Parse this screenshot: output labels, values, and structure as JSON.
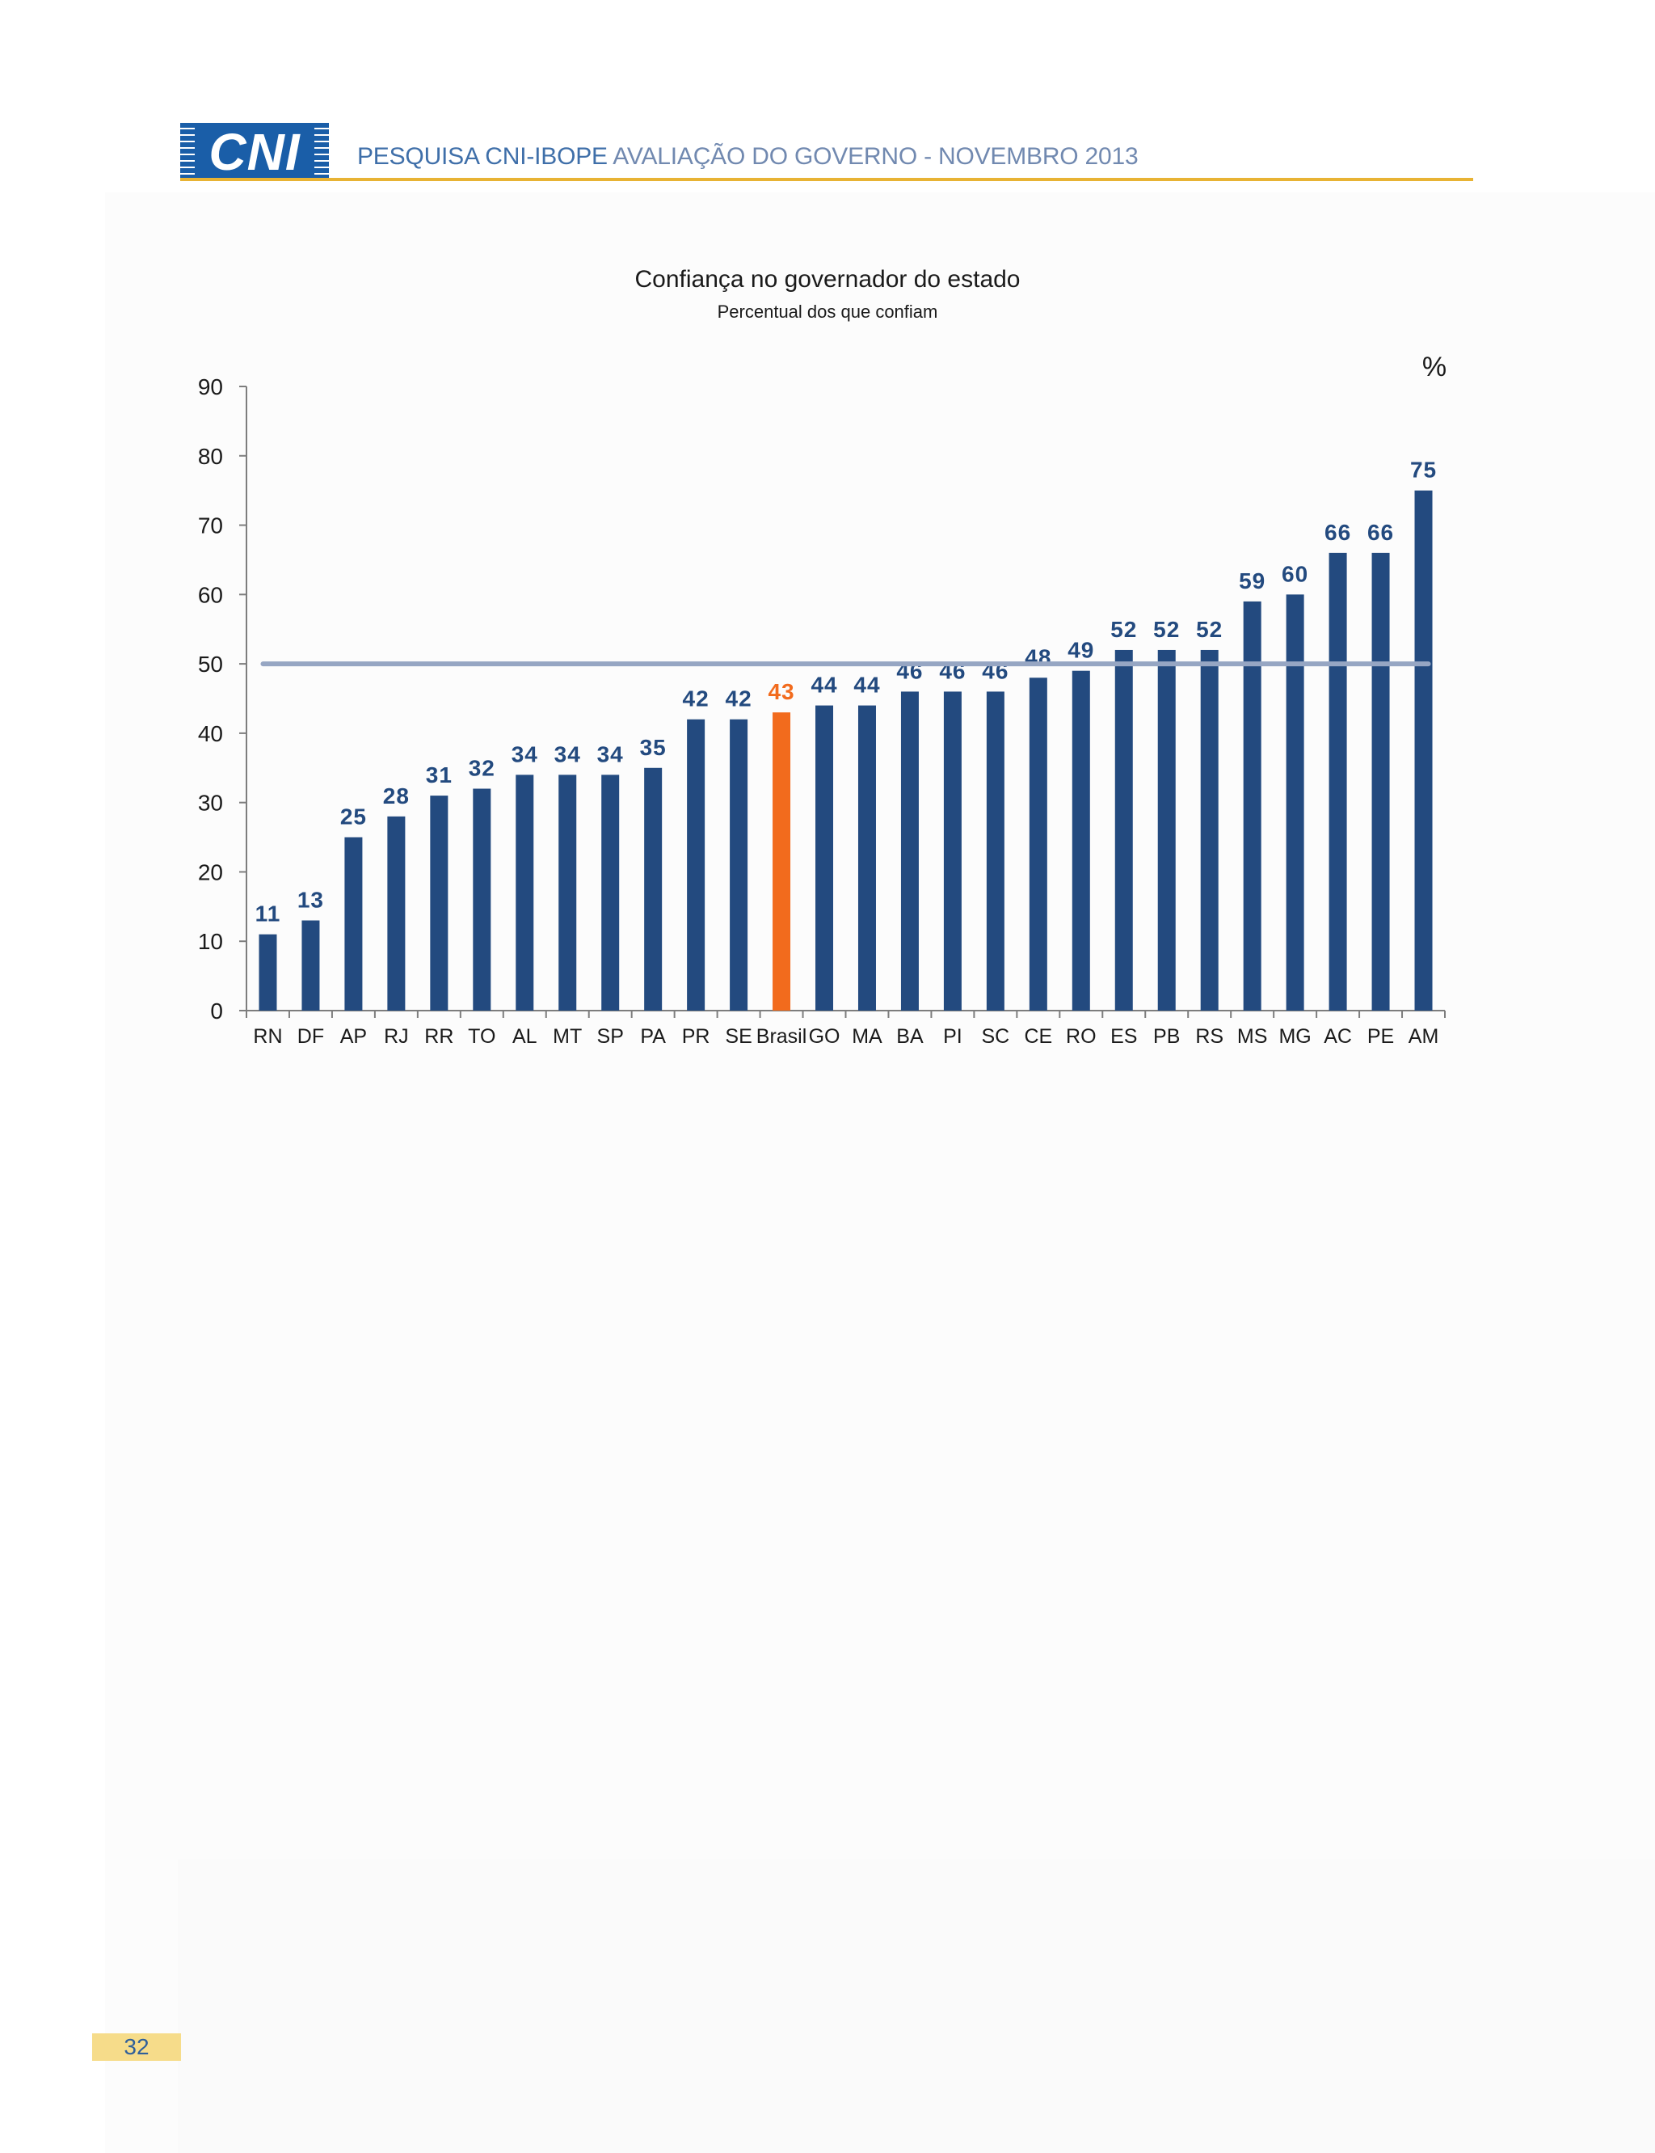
{
  "header": {
    "logo_text": "CNI",
    "title_strong": "PESQUISA CNI-IBOPE",
    "title_rest": " AVALIAÇÃO DO GOVERNO - NOVEMBRO 2013"
  },
  "page_number": "32",
  "colors": {
    "bar": "#234a7f",
    "highlight_bar": "#f26b1d",
    "reference_line": "#96a6c3",
    "header_rule": "#e8b334",
    "logo": "#1a5ea8"
  },
  "chart_data": {
    "type": "bar",
    "title": "Confiança no governador do estado",
    "subtitle": "Percentual dos que confiam",
    "unit_label": "%",
    "categories": [
      "RN",
      "DF",
      "AP",
      "RJ",
      "RR",
      "TO",
      "AL",
      "MT",
      "SP",
      "PA",
      "PR",
      "SE",
      "Brasil",
      "GO",
      "MA",
      "BA",
      "PI",
      "SC",
      "CE",
      "RO",
      "ES",
      "PB",
      "RS",
      "MS",
      "MG",
      "AC",
      "PE",
      "AM"
    ],
    "values": [
      11,
      13,
      25,
      28,
      31,
      32,
      34,
      34,
      34,
      35,
      42,
      42,
      43,
      44,
      44,
      46,
      46,
      46,
      48,
      49,
      52,
      52,
      52,
      59,
      60,
      66,
      66,
      75
    ],
    "highlight_category": "Brasil",
    "reference_line": 50,
    "ylim": [
      0,
      90
    ],
    "yticks": [
      0,
      10,
      20,
      30,
      40,
      50,
      60,
      70,
      80,
      90
    ],
    "grid": false,
    "legend": "none"
  }
}
